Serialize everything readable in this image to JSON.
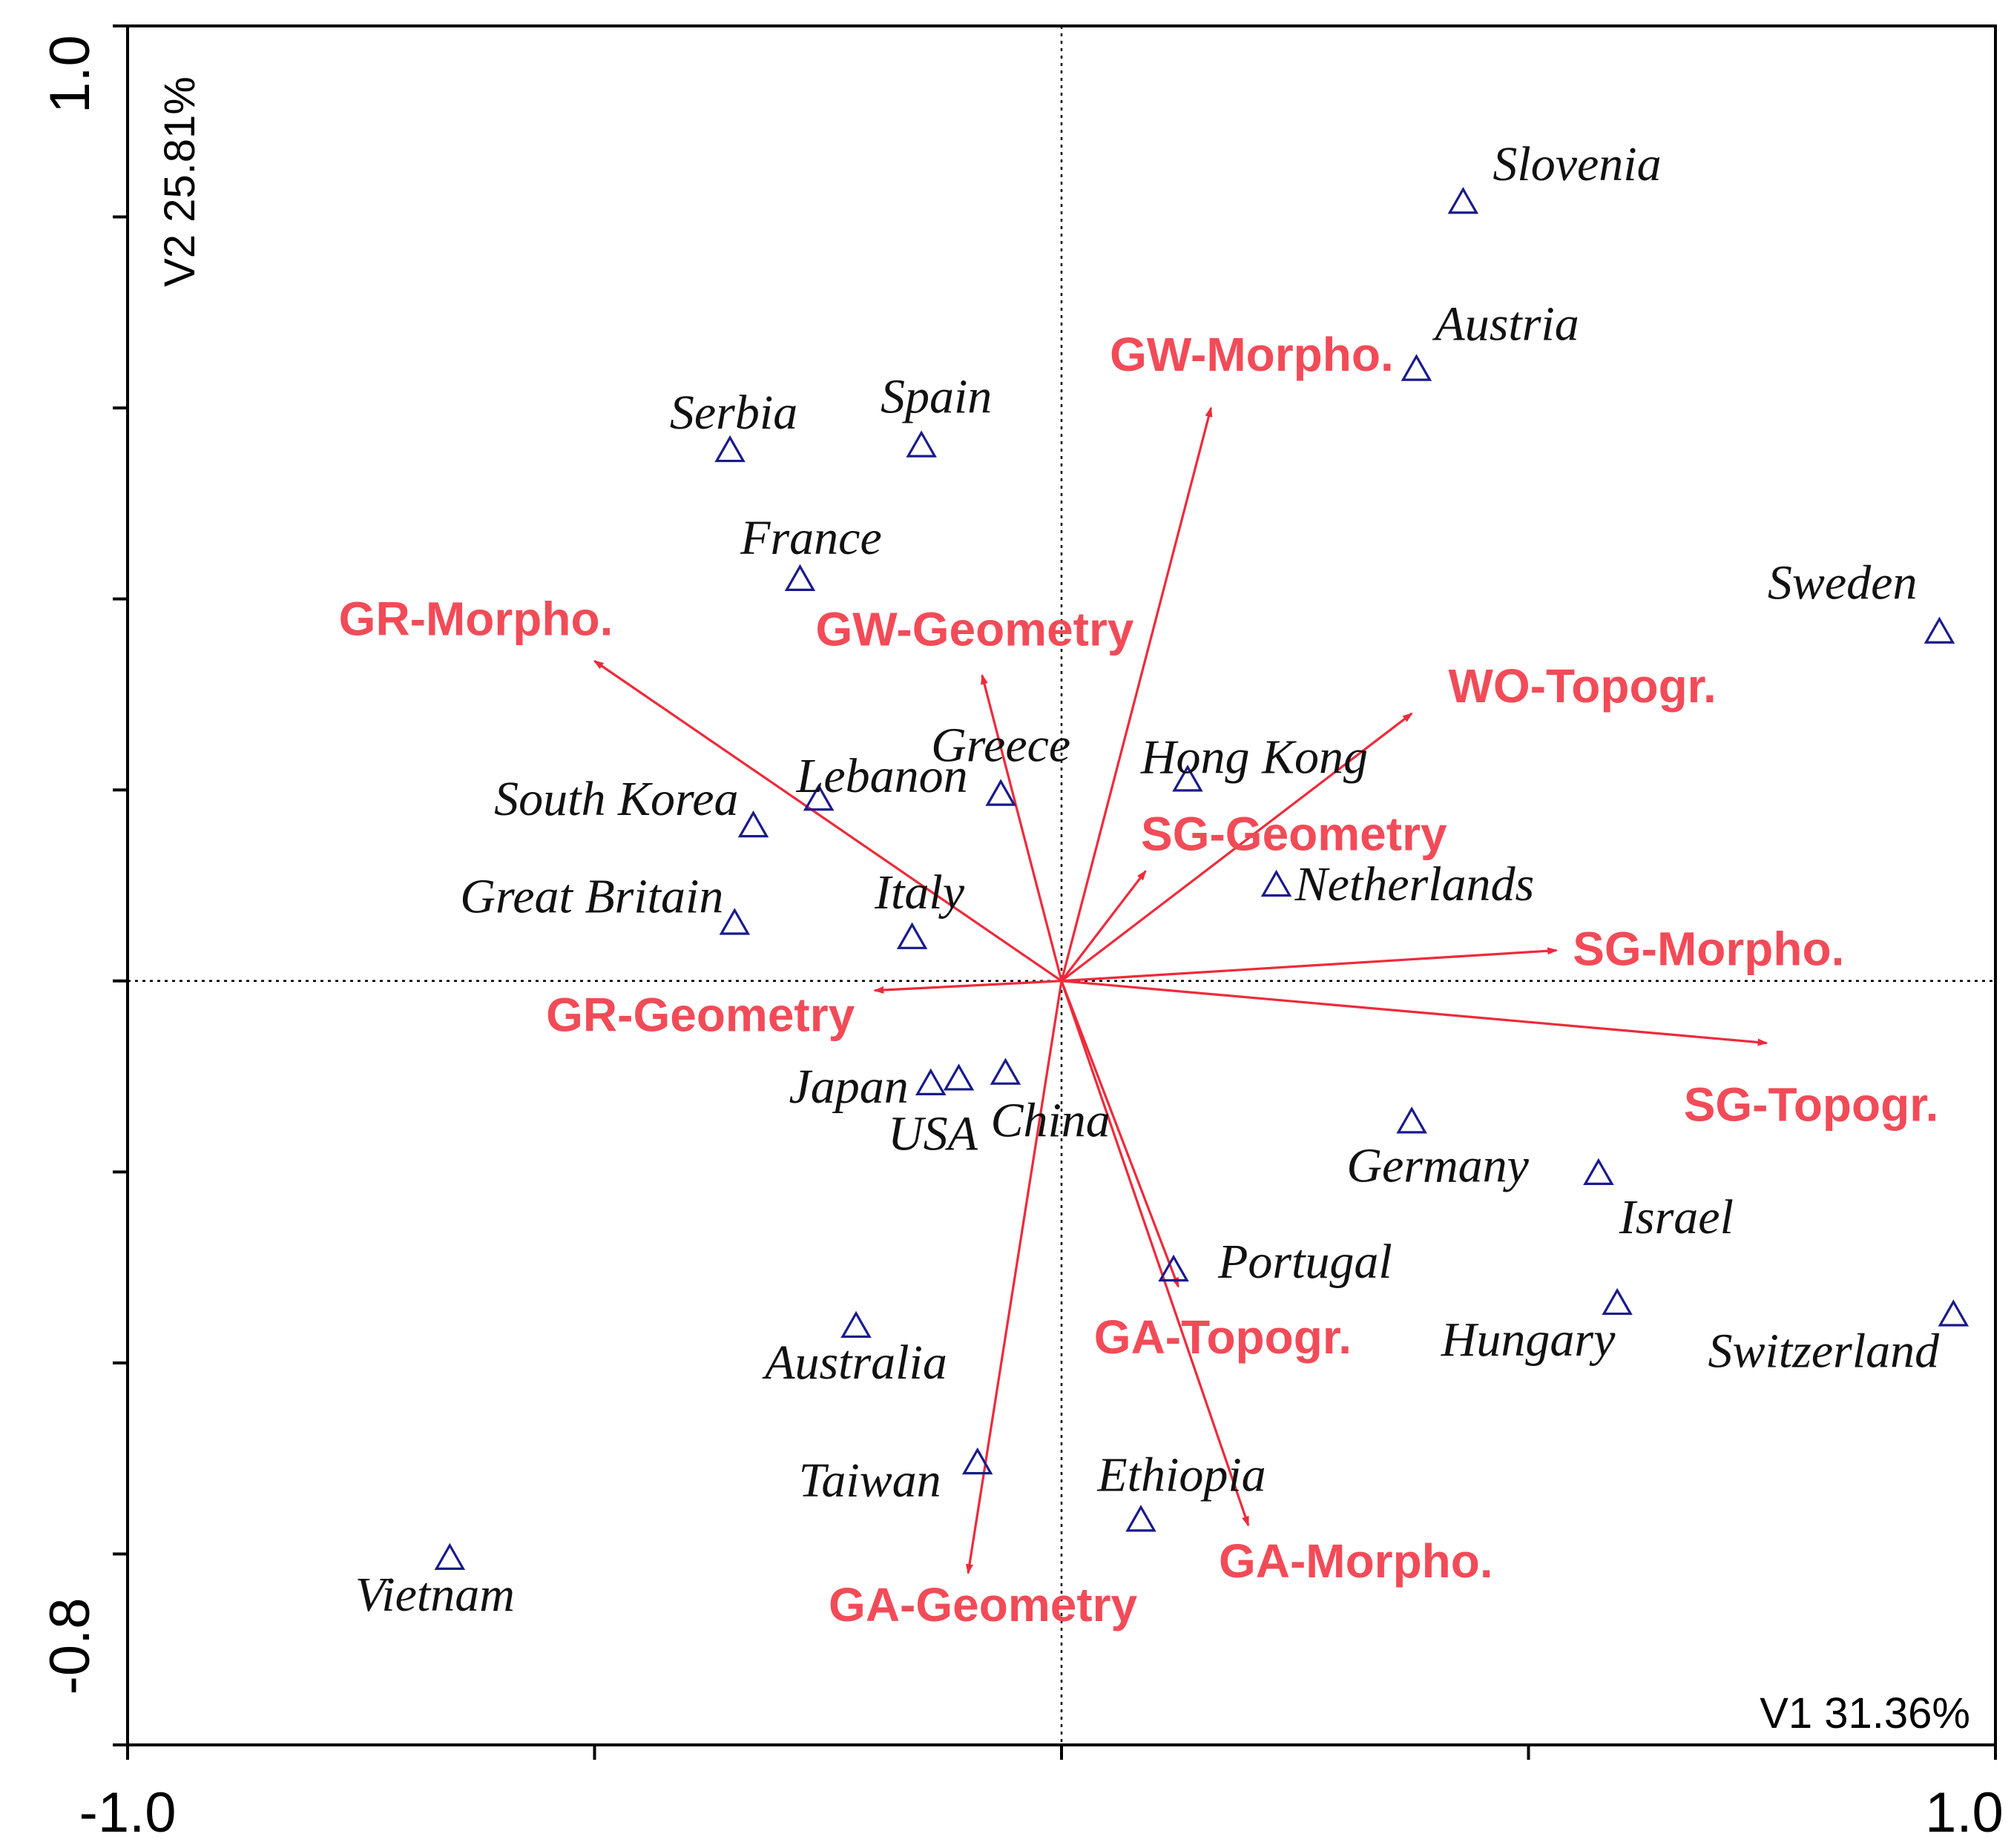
{
  "chart_data": {
    "type": "scatter",
    "title": "",
    "xlabel": "V1 31.36%",
    "ylabel": "V2 25.81%",
    "xlim": [
      -1.0,
      1.0
    ],
    "ylim": [
      -0.8,
      1.0
    ],
    "x_tick_labels": [
      "-1.0",
      "1.0"
    ],
    "y_tick_labels": [
      "-0.8",
      "1.0"
    ],
    "zero_lines": true,
    "colors": {
      "points": "#1a1a8c",
      "vectors": "#ee2a3a",
      "vector_labels": "#f24b58"
    },
    "points": [
      {
        "name": "Slovenia",
        "x": 0.43,
        "y": 0.815
      },
      {
        "name": "Austria",
        "x": 0.38,
        "y": 0.64
      },
      {
        "name": "Serbia",
        "x": -0.355,
        "y": 0.555
      },
      {
        "name": "Spain",
        "x": -0.15,
        "y": 0.56
      },
      {
        "name": "France",
        "x": -0.28,
        "y": 0.42
      },
      {
        "name": "Sweden",
        "x": 0.94,
        "y": 0.365
      },
      {
        "name": "Lebanon",
        "x": -0.26,
        "y": 0.19
      },
      {
        "name": "Greece",
        "x": -0.065,
        "y": 0.195
      },
      {
        "name": "Hong Kong",
        "x": 0.135,
        "y": 0.21
      },
      {
        "name": "South Korea",
        "x": -0.33,
        "y": 0.162
      },
      {
        "name": "Great Britain",
        "x": -0.35,
        "y": 0.06
      },
      {
        "name": "Italy",
        "x": -0.16,
        "y": 0.045
      },
      {
        "name": "Netherlands",
        "x": 0.23,
        "y": 0.1
      },
      {
        "name": "Japan",
        "x": -0.14,
        "y": -0.108
      },
      {
        "name": "USA",
        "x": -0.11,
        "y": -0.103
      },
      {
        "name": "China",
        "x": -0.06,
        "y": -0.097
      },
      {
        "name": "Germany",
        "x": 0.375,
        "y": -0.148
      },
      {
        "name": "Israel",
        "x": 0.575,
        "y": -0.202
      },
      {
        "name": "Portugal",
        "x": 0.12,
        "y": -0.303
      },
      {
        "name": "Australia",
        "x": -0.22,
        "y": -0.362
      },
      {
        "name": "Hungary",
        "x": 0.595,
        "y": -0.338
      },
      {
        "name": "Switzerland",
        "x": 0.955,
        "y": -0.35
      },
      {
        "name": "Taiwan",
        "x": -0.09,
        "y": -0.505
      },
      {
        "name": "Ethiopia",
        "x": 0.085,
        "y": -0.565
      },
      {
        "name": "Vietnam",
        "x": -0.655,
        "y": -0.605
      }
    ],
    "vectors": [
      {
        "name": "GW-Morpho.",
        "x": 0.16,
        "y": 0.6
      },
      {
        "name": "GR-Morpho.",
        "x": -0.5,
        "y": 0.335
      },
      {
        "name": "GW-Geometry",
        "x": -0.085,
        "y": 0.32
      },
      {
        "name": "WO-Topogr.",
        "x": 0.375,
        "y": 0.28
      },
      {
        "name": "SG-Geometry",
        "x": 0.09,
        "y": 0.115
      },
      {
        "name": "SG-Morpho.",
        "x": 0.53,
        "y": 0.032
      },
      {
        "name": "GR-Geometry",
        "x": -0.2,
        "y": -0.01
      },
      {
        "name": "SG-Topogr.",
        "x": 0.755,
        "y": -0.065
      },
      {
        "name": "GA-Topogr.",
        "x": 0.125,
        "y": -0.32
      },
      {
        "name": "GA-Morpho.",
        "x": 0.2,
        "y": -0.57
      },
      {
        "name": "GA-Geometry",
        "x": -0.1,
        "y": -0.62
      }
    ]
  }
}
